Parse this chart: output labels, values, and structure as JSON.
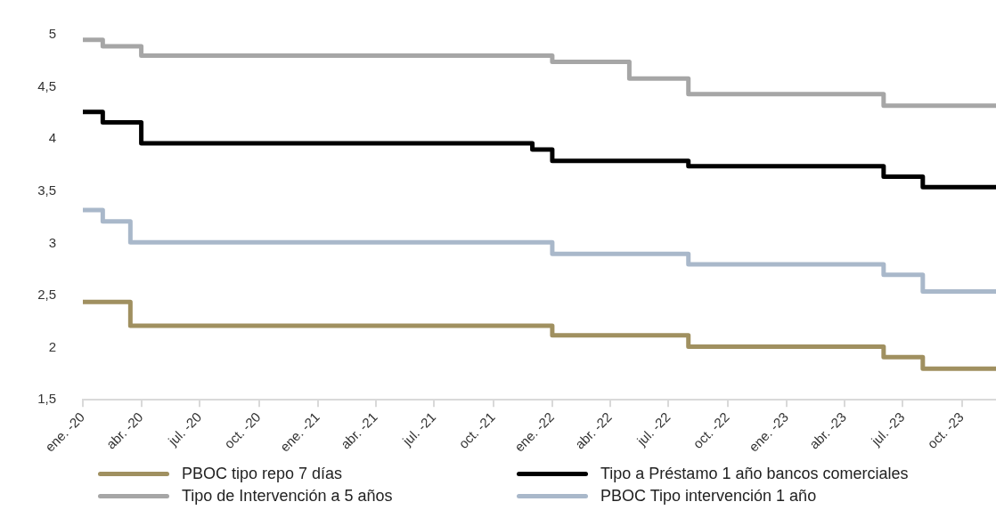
{
  "chart_data": {
    "type": "step",
    "xlim": [
      "2020-01-01",
      "2023-11-23"
    ],
    "xticks": [
      {
        "value": "2020-01",
        "label": "ene. -20"
      },
      {
        "value": "2020-04",
        "label": "abr. -20"
      },
      {
        "value": "2020-07",
        "label": "jul. -20"
      },
      {
        "value": "2020-10",
        "label": "oct. -20"
      },
      {
        "value": "2021-01",
        "label": "ene. -21"
      },
      {
        "value": "2021-04",
        "label": "abr. -21"
      },
      {
        "value": "2021-07",
        "label": "jul. -21"
      },
      {
        "value": "2021-10",
        "label": "oct. -21"
      },
      {
        "value": "2022-01",
        "label": "ene. -22"
      },
      {
        "value": "2022-04",
        "label": "abr. -22"
      },
      {
        "value": "2022-07",
        "label": "jul. -22"
      },
      {
        "value": "2022-10",
        "label": "oct. -22"
      },
      {
        "value": "2023-01",
        "label": "ene. -23"
      },
      {
        "value": "2023-04",
        "label": "abr. -23"
      },
      {
        "value": "2023-07",
        "label": "jul. -23"
      },
      {
        "value": "2023-10",
        "label": "oct. -23"
      }
    ],
    "ylim": [
      1.5,
      5
    ],
    "yticks": [
      {
        "value": 1.5,
        "label": "1,5"
      },
      2,
      {
        "value": 2.5,
        "label": "2,5"
      },
      3,
      {
        "value": 3.5,
        "label": "3,5"
      },
      4,
      {
        "value": 4.5,
        "label": "4,5"
      },
      5
    ],
    "grid": false,
    "legend": "bottom",
    "marker": "none",
    "line_style": "solid",
    "series": [
      {
        "name": "PBOC tipo repo 7 días",
        "color": "#a09060",
        "x": [
          "2020-01-01",
          "2020-03-15",
          "2022-01",
          "2022-08",
          "2023-06",
          "2023-08",
          "2023-11-23"
        ],
        "values": [
          2.44,
          2.21,
          2.12,
          2.01,
          1.91,
          1.8,
          1.8
        ]
      },
      {
        "name": "Tipo a Préstamo 1 año bancos comerciales",
        "color": "#000000",
        "x": [
          "2020-01-01",
          "2020-02",
          "2020-04",
          "2021-12",
          "2022-01",
          "2022-08",
          "2023-06",
          "2023-08",
          "2023-11-23"
        ],
        "values": [
          4.26,
          4.16,
          3.96,
          3.9,
          3.79,
          3.74,
          3.64,
          3.54,
          3.54
        ]
      },
      {
        "name": "Tipo de Intervención a 5 años",
        "color": "#a6a6a6",
        "x": [
          "2020-01-01",
          "2020-02",
          "2020-04",
          "2022-01",
          "2022-05",
          "2022-08",
          "2023-06",
          "2023-11-23"
        ],
        "values": [
          4.95,
          4.89,
          4.8,
          4.74,
          4.58,
          4.43,
          4.32,
          4.32
        ]
      },
      {
        "name": "PBOC Tipo intervención 1 año",
        "color": "#a9b8ca",
        "x": [
          "2020-01-01",
          "2020-02",
          "2020-03-15",
          "2022-01",
          "2022-08",
          "2023-06",
          "2023-08",
          "2023-11-23"
        ],
        "values": [
          3.32,
          3.21,
          3.01,
          2.9,
          2.8,
          2.7,
          2.54,
          2.54
        ]
      }
    ]
  }
}
